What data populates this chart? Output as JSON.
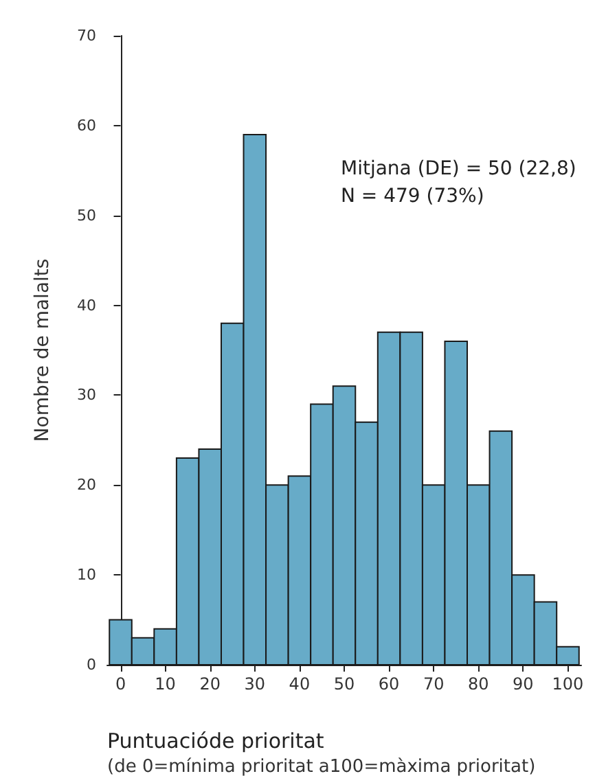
{
  "chart_data": {
    "type": "histogram",
    "ylabel": "Nombre de malalts",
    "xlabel": "Puntuacióde prioritat",
    "bins": [
      -2.5,
      2.5,
      7.5,
      12.5,
      17.5,
      22.5,
      27.5,
      32.5,
      37.5,
      42.5,
      47.5,
      52.5,
      57.5,
      62.5,
      67.5,
      72.5,
      77.5,
      82.5,
      87.5,
      92.5,
      97.5,
      102.5
    ],
    "values": [
      5,
      3,
      4,
      23,
      24,
      38,
      59,
      20,
      21,
      29,
      31,
      27,
      37,
      37,
      20,
      36,
      20,
      26,
      10,
      7,
      2
    ],
    "color": "#67abc8",
    "xlim": [
      -3,
      103
    ],
    "xticks": [
      0,
      10,
      20,
      30,
      40,
      50,
      60,
      70,
      80,
      90,
      100
    ],
    "ylim": [
      0,
      70
    ],
    "yticks": [
      0,
      10,
      20,
      30,
      40,
      50,
      60,
      70
    ],
    "grid": false,
    "annotations": [
      "Mitjana (DE) = 50 (22,8)",
      "N = 479 (73%)",
      "(de 0=mínima prioritat a100=màxima prioritat)"
    ]
  }
}
